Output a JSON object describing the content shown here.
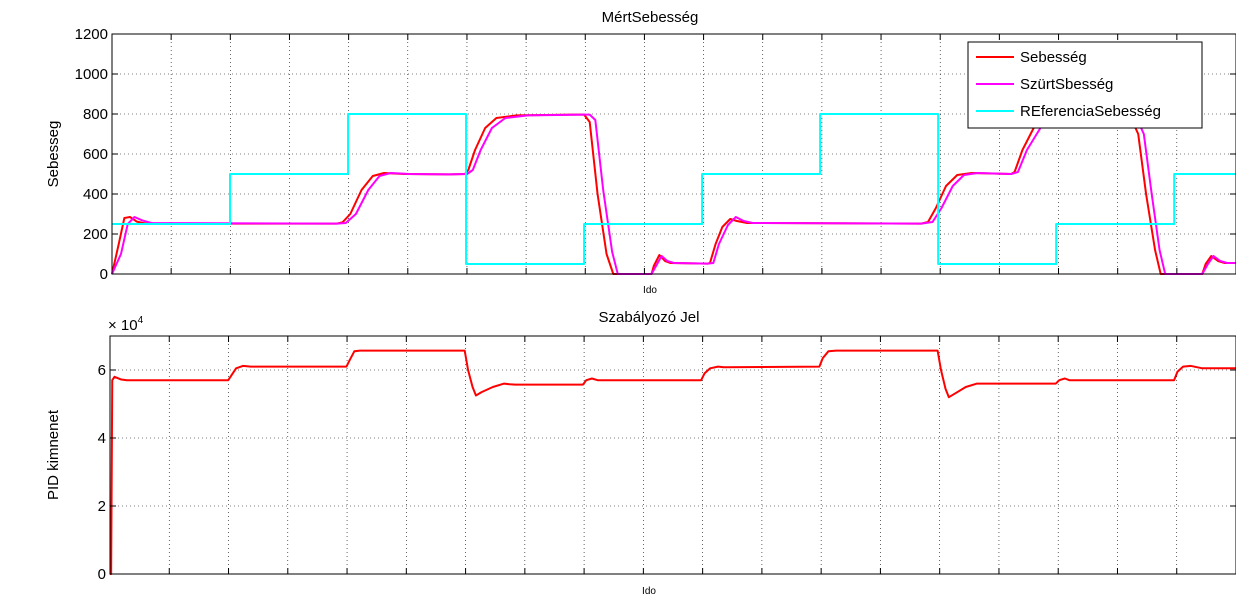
{
  "chart_data": [
    {
      "type": "line",
      "title": "MértSebesség",
      "xlabel": "Ido",
      "ylabel": "Sebesseg",
      "ylim": [
        0,
        1200
      ],
      "yticks": [
        "0",
        "200",
        "400",
        "600",
        "800",
        "1000",
        "1200"
      ],
      "xlim": [
        0,
        1
      ],
      "x_tick_labels_shown": false,
      "grid": true,
      "legend_position": "top-right",
      "series": [
        {
          "name": "Sebesség",
          "color": "#ff0000",
          "points": [
            [
              0,
              0
            ],
            [
              0.006,
              150
            ],
            [
              0.011,
              280
            ],
            [
              0.016,
              285
            ],
            [
              0.022,
              262
            ],
            [
              0.03,
              252
            ],
            [
              0.2,
              252
            ],
            [
              0.205,
              258
            ],
            [
              0.212,
              300
            ],
            [
              0.222,
              420
            ],
            [
              0.232,
              490
            ],
            [
              0.242,
              505
            ],
            [
              0.26,
              500
            ],
            [
              0.3,
              498
            ],
            [
              0.314,
              500
            ],
            [
              0.317,
              520
            ],
            [
              0.323,
              620
            ],
            [
              0.332,
              730
            ],
            [
              0.342,
              780
            ],
            [
              0.36,
              793
            ],
            [
              0.41,
              797
            ],
            [
              0.42,
              797
            ],
            [
              0.425,
              760
            ],
            [
              0.432,
              400
            ],
            [
              0.44,
              100
            ],
            [
              0.446,
              0
            ],
            [
              0.48,
              0
            ],
            [
              0.482,
              40
            ],
            [
              0.487,
              95
            ],
            [
              0.492,
              65
            ],
            [
              0.497,
              55
            ],
            [
              0.53,
              52
            ],
            [
              0.532,
              55
            ],
            [
              0.537,
              150
            ],
            [
              0.543,
              235
            ],
            [
              0.55,
              275
            ],
            [
              0.556,
              265
            ],
            [
              0.565,
              255
            ],
            [
              0.72,
              252
            ],
            [
              0.726,
              260
            ],
            [
              0.733,
              330
            ],
            [
              0.742,
              440
            ],
            [
              0.752,
              495
            ],
            [
              0.765,
              505
            ],
            [
              0.8,
              500
            ],
            [
              0.803,
              510
            ],
            [
              0.81,
              620
            ],
            [
              0.82,
              730
            ],
            [
              0.832,
              780
            ],
            [
              0.85,
              795
            ],
            [
              0.89,
              800
            ],
            [
              0.905,
              800
            ],
            [
              0.913,
              700
            ],
            [
              0.92,
              400
            ],
            [
              0.928,
              120
            ],
            [
              0.933,
              0
            ],
            [
              0.97,
              0
            ],
            [
              0.973,
              50
            ],
            [
              0.978,
              90
            ],
            [
              0.984,
              65
            ],
            [
              0.99,
              55
            ],
            [
              1,
              55
            ]
          ]
        },
        {
          "name": "SzürtSbesség",
          "color": "#ff00ff",
          "points": [
            [
              0,
              0
            ],
            [
              0.008,
              100
            ],
            [
              0.014,
              250
            ],
            [
              0.02,
              285
            ],
            [
              0.027,
              268
            ],
            [
              0.035,
              255
            ],
            [
              0.2,
              252
            ],
            [
              0.208,
              255
            ],
            [
              0.217,
              300
            ],
            [
              0.228,
              420
            ],
            [
              0.238,
              490
            ],
            [
              0.248,
              505
            ],
            [
              0.265,
              500
            ],
            [
              0.3,
              498
            ],
            [
              0.316,
              500
            ],
            [
              0.321,
              520
            ],
            [
              0.328,
              620
            ],
            [
              0.338,
              730
            ],
            [
              0.35,
              780
            ],
            [
              0.37,
              793
            ],
            [
              0.42,
              797
            ],
            [
              0.425,
              797
            ],
            [
              0.43,
              770
            ],
            [
              0.437,
              420
            ],
            [
              0.445,
              110
            ],
            [
              0.45,
              0
            ],
            [
              0.48,
              0
            ],
            [
              0.484,
              40
            ],
            [
              0.489,
              90
            ],
            [
              0.494,
              65
            ],
            [
              0.5,
              55
            ],
            [
              0.53,
              52
            ],
            [
              0.535,
              55
            ],
            [
              0.54,
              150
            ],
            [
              0.548,
              245
            ],
            [
              0.555,
              285
            ],
            [
              0.562,
              265
            ],
            [
              0.57,
              255
            ],
            [
              0.72,
              252
            ],
            [
              0.73,
              260
            ],
            [
              0.738,
              330
            ],
            [
              0.748,
              440
            ],
            [
              0.758,
              495
            ],
            [
              0.77,
              505
            ],
            [
              0.8,
              500
            ],
            [
              0.806,
              510
            ],
            [
              0.814,
              620
            ],
            [
              0.826,
              730
            ],
            [
              0.838,
              780
            ],
            [
              0.856,
              795
            ],
            [
              0.89,
              800
            ],
            [
              0.91,
              800
            ],
            [
              0.918,
              700
            ],
            [
              0.925,
              400
            ],
            [
              0.932,
              120
            ],
            [
              0.937,
              0
            ],
            [
              0.97,
              0
            ],
            [
              0.975,
              50
            ],
            [
              0.98,
              90
            ],
            [
              0.986,
              65
            ],
            [
              0.992,
              55
            ],
            [
              1,
              55
            ]
          ]
        },
        {
          "name": "REferenciaSebesség",
          "color": "#00ffff",
          "points": [
            [
              0,
              250
            ],
            [
              0.105,
              250
            ],
            [
              0.105,
              500
            ],
            [
              0.21,
              500
            ],
            [
              0.21,
              800
            ],
            [
              0.315,
              800
            ],
            [
              0.315,
              50
            ],
            [
              0.42,
              50
            ],
            [
              0.42,
              250
            ],
            [
              0.525,
              250
            ],
            [
              0.525,
              500
            ],
            [
              0.63,
              500
            ],
            [
              0.63,
              800
            ],
            [
              0.735,
              800
            ],
            [
              0.735,
              50
            ],
            [
              0.84,
              50
            ],
            [
              0.84,
              250
            ],
            [
              0.945,
              250
            ],
            [
              0.945,
              500
            ],
            [
              1,
              500
            ]
          ]
        }
      ]
    },
    {
      "type": "line",
      "title": "Szabályozó Jel",
      "xlabel": "Ido",
      "ylabel": "PID kimnenet",
      "y_multiplier": "× 10",
      "y_multiplier_exponent": "4",
      "ylim": [
        0,
        70000
      ],
      "yticks": [
        "0",
        "2",
        "4",
        "6"
      ],
      "xlim": [
        0,
        1
      ],
      "x_tick_labels_shown": false,
      "grid": true,
      "series": [
        {
          "color": "#ff0000",
          "points": [
            [
              0,
              0
            ],
            [
              0.001,
              0
            ],
            [
              0.002,
              57000
            ],
            [
              0.004,
              58000
            ],
            [
              0.01,
              57200
            ],
            [
              0.015,
              57000
            ],
            [
              0.105,
              57000
            ],
            [
              0.108,
              58500
            ],
            [
              0.112,
              60500
            ],
            [
              0.118,
              61200
            ],
            [
              0.125,
              61000
            ],
            [
              0.21,
              61000
            ],
            [
              0.213,
              63000
            ],
            [
              0.217,
              65500
            ],
            [
              0.222,
              65700
            ],
            [
              0.315,
              65700
            ],
            [
              0.318,
              60000
            ],
            [
              0.322,
              55000
            ],
            [
              0.325,
              52500
            ],
            [
              0.33,
              53500
            ],
            [
              0.34,
              55000
            ],
            [
              0.35,
              56000
            ],
            [
              0.355,
              55800
            ],
            [
              0.36,
              55700
            ],
            [
              0.42,
              55700
            ],
            [
              0.423,
              57000
            ],
            [
              0.428,
              57500
            ],
            [
              0.433,
              57000
            ],
            [
              0.525,
              57000
            ],
            [
              0.528,
              59000
            ],
            [
              0.533,
              60500
            ],
            [
              0.54,
              61000
            ],
            [
              0.545,
              60800
            ],
            [
              0.63,
              61000
            ],
            [
              0.633,
              63500
            ],
            [
              0.638,
              65500
            ],
            [
              0.645,
              65700
            ],
            [
              0.735,
              65700
            ],
            [
              0.738,
              60000
            ],
            [
              0.742,
              54500
            ],
            [
              0.745,
              52000
            ],
            [
              0.75,
              53000
            ],
            [
              0.76,
              55000
            ],
            [
              0.77,
              56000
            ],
            [
              0.84,
              56000
            ],
            [
              0.843,
              57000
            ],
            [
              0.848,
              57500
            ],
            [
              0.852,
              57000
            ],
            [
              0.945,
              57000
            ],
            [
              0.948,
              59500
            ],
            [
              0.953,
              61000
            ],
            [
              0.96,
              61200
            ],
            [
              0.97,
              60500
            ],
            [
              1,
              60500
            ]
          ]
        }
      ]
    }
  ]
}
